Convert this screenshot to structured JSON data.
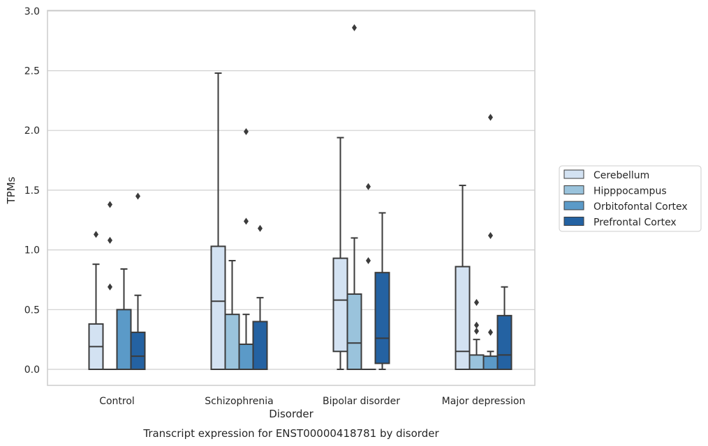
{
  "chart_data": {
    "type": "boxplot",
    "caption": "Transcript expression for ENST00000418781 by disorder",
    "xlabel": "Disorder",
    "ylabel": "TPMs",
    "ylim": [
      -0.13,
      3.0
    ],
    "yticks": [
      0.0,
      0.5,
      1.0,
      1.5,
      2.0,
      2.5,
      3.0
    ],
    "ytick_labels": [
      "0.0",
      "0.5",
      "1.0",
      "1.5",
      "2.0",
      "2.5",
      "3.0"
    ],
    "grid": "horizontal",
    "legend_position": "right",
    "categories": [
      "Control",
      "Schizophrenia",
      "Bipolar disorder",
      "Major depression"
    ],
    "series": [
      {
        "name": "Cerebellum",
        "color": "#d3e2f2",
        "boxes": [
          {
            "whislo": 0.0,
            "q1": 0.0,
            "med": 0.19,
            "q3": 0.38,
            "whishi": 0.88,
            "fliers": [
              1.13
            ]
          },
          {
            "whislo": 0.0,
            "q1": 0.0,
            "med": 0.57,
            "q3": 1.03,
            "whishi": 2.48,
            "fliers": []
          },
          {
            "whislo": 0.0,
            "q1": 0.15,
            "med": 0.58,
            "q3": 0.93,
            "whishi": 1.94,
            "fliers": []
          },
          {
            "whislo": 0.0,
            "q1": 0.0,
            "med": 0.15,
            "q3": 0.86,
            "whishi": 1.54,
            "fliers": []
          }
        ]
      },
      {
        "name": "Hipppocampus",
        "color": "#9ac3dc",
        "boxes": [
          {
            "whislo": 0.0,
            "q1": 0.0,
            "med": 0.0,
            "q3": 0.0,
            "whishi": 0.0,
            "fliers": [
              0.69,
              1.08,
              1.38
            ]
          },
          {
            "whislo": 0.0,
            "q1": 0.0,
            "med": 0.0,
            "q3": 0.46,
            "whishi": 0.91,
            "fliers": []
          },
          {
            "whislo": 0.0,
            "q1": 0.0,
            "med": 0.22,
            "q3": 0.63,
            "whishi": 1.1,
            "fliers": [
              2.86
            ]
          },
          {
            "whislo": 0.0,
            "q1": 0.0,
            "med": 0.0,
            "q3": 0.12,
            "whishi": 0.25,
            "fliers": [
              0.32,
              0.37,
              0.56
            ]
          }
        ]
      },
      {
        "name": "Orbitofontal Cortex",
        "color": "#5b9ac8",
        "boxes": [
          {
            "whislo": 0.0,
            "q1": 0.0,
            "med": 0.0,
            "q3": 0.5,
            "whishi": 0.84,
            "fliers": []
          },
          {
            "whislo": 0.0,
            "q1": 0.0,
            "med": 0.0,
            "q3": 0.21,
            "whishi": 0.46,
            "fliers": [
              1.24,
              1.99
            ]
          },
          {
            "whislo": 0.0,
            "q1": 0.0,
            "med": 0.0,
            "q3": 0.0,
            "whishi": 0.0,
            "fliers": [
              0.91,
              1.53
            ]
          },
          {
            "whislo": 0.0,
            "q1": 0.0,
            "med": 0.0,
            "q3": 0.11,
            "whishi": 0.15,
            "fliers": [
              0.31,
              1.12,
              2.11
            ]
          }
        ]
      },
      {
        "name": "Prefrontal Cortex",
        "color": "#2462a2",
        "boxes": [
          {
            "whislo": 0.0,
            "q1": 0.0,
            "med": 0.11,
            "q3": 0.31,
            "whishi": 0.62,
            "fliers": [
              1.45
            ]
          },
          {
            "whislo": 0.0,
            "q1": 0.0,
            "med": 0.0,
            "q3": 0.4,
            "whishi": 0.6,
            "fliers": [
              1.18
            ]
          },
          {
            "whislo": 0.0,
            "q1": 0.05,
            "med": 0.26,
            "q3": 0.81,
            "whishi": 1.31,
            "fliers": []
          },
          {
            "whislo": 0.0,
            "q1": 0.0,
            "med": 0.12,
            "q3": 0.45,
            "whishi": 0.69,
            "fliers": []
          }
        ]
      }
    ]
  }
}
